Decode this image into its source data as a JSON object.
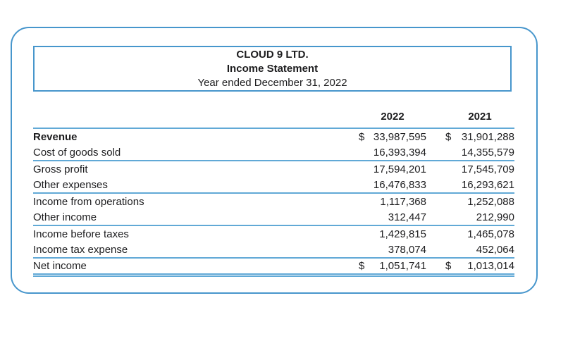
{
  "document": {
    "company": "CLOUD 9 LTD.",
    "statement_title": "Income Statement",
    "period": "Year ended December 31, 2022"
  },
  "table": {
    "columns": [
      "2022",
      "2021"
    ],
    "rows": [
      {
        "label": "Revenue",
        "dollar2022": "$",
        "v2022": "33,987,595",
        "dollar2021": "$",
        "v2021": "31,901,288"
      },
      {
        "label": "Cost of goods sold",
        "dollar2022": "",
        "v2022": "16,393,394",
        "dollar2021": "",
        "v2021": "14,355,579"
      },
      {
        "label": "Gross profit",
        "dollar2022": "",
        "v2022": "17,594,201",
        "dollar2021": "",
        "v2021": "17,545,709"
      },
      {
        "label": "Other expenses",
        "dollar2022": "",
        "v2022": "16,476,833",
        "dollar2021": "",
        "v2021": "16,293,621"
      },
      {
        "label": "Income from operations",
        "dollar2022": "",
        "v2022": "1,117,368",
        "dollar2021": "",
        "v2021": "1,252,088"
      },
      {
        "label": "Other income",
        "dollar2022": "",
        "v2022": "312,447",
        "dollar2021": "",
        "v2021": "212,990"
      },
      {
        "label": "Income before taxes",
        "dollar2022": "",
        "v2022": "1,429,815",
        "dollar2021": "",
        "v2021": "1,465,078"
      },
      {
        "label": "Income tax expense",
        "dollar2022": "",
        "v2022": "378,074",
        "dollar2021": "",
        "v2021": "452,064"
      },
      {
        "label": "Net income",
        "dollar2022": "$",
        "v2022": "1,051,741",
        "dollar2021": "$",
        "v2021": "1,013,014"
      }
    ]
  },
  "colors": {
    "border_blue": "#4796cc",
    "rule_blue": "#61a9d6",
    "text": "#1d1d1f",
    "background": "#ffffff"
  }
}
